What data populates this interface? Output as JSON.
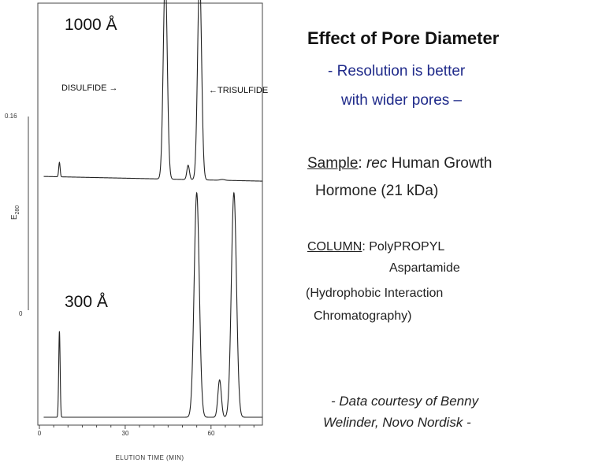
{
  "chart_data": {
    "type": "line",
    "xlabel": "ELUTION TIME (MIN)",
    "ylabel": "E",
    "ylabel_sub": "280",
    "x_ticks": [
      "0",
      "30",
      "60"
    ],
    "y_ticks": [
      "0.16",
      "0"
    ],
    "xlim": [
      0,
      80
    ],
    "panels": [
      {
        "name": "1000 Å",
        "baseline": 0.05,
        "drift": -0.012,
        "peaks": [
          {
            "t": 7,
            "h": 0.035,
            "w": 0.25
          },
          {
            "t": 44,
            "h": 0.5,
            "w": 0.7
          },
          {
            "t": 52,
            "h": 0.035,
            "w": 0.45
          },
          {
            "t": 56,
            "h": 0.5,
            "w": 0.7
          },
          {
            "t": 64,
            "h": 0.002,
            "w": 0.8
          }
        ]
      },
      {
        "name": "300 Å",
        "baseline": 0.0,
        "drift": 0.0,
        "peaks": [
          {
            "t": 7,
            "h": 0.115,
            "w": 0.25
          },
          {
            "t": 55,
            "h": 0.3,
            "w": 0.9
          },
          {
            "t": 63,
            "h": 0.05,
            "w": 0.6
          },
          {
            "t": 68,
            "h": 0.3,
            "w": 0.9
          }
        ]
      }
    ],
    "annotations": {
      "disulfide": "DISULFIDE →",
      "trisulfide": "←TRISULFIDE"
    }
  },
  "text": {
    "title": "Effect of Pore Diameter",
    "subtitle_line1": "- Resolution is better",
    "subtitle_line2": "with wider pores –",
    "sample_label": "Sample",
    "sample_colon": ":",
    "sample_rec": "rec",
    "sample_rest": " Human Growth",
    "sample_line2": "Hormone (21 kDa)",
    "column_label": "COLUMN",
    "column_rest": ": PolyPROPYL",
    "column_line2": "Aspartamide",
    "column_line3": "(Hydrophobic Interaction",
    "column_line4": "Chromatography)",
    "credit_line1": "- Data courtesy of Benny",
    "credit_line2": "Welinder, Novo Nordisk -"
  }
}
